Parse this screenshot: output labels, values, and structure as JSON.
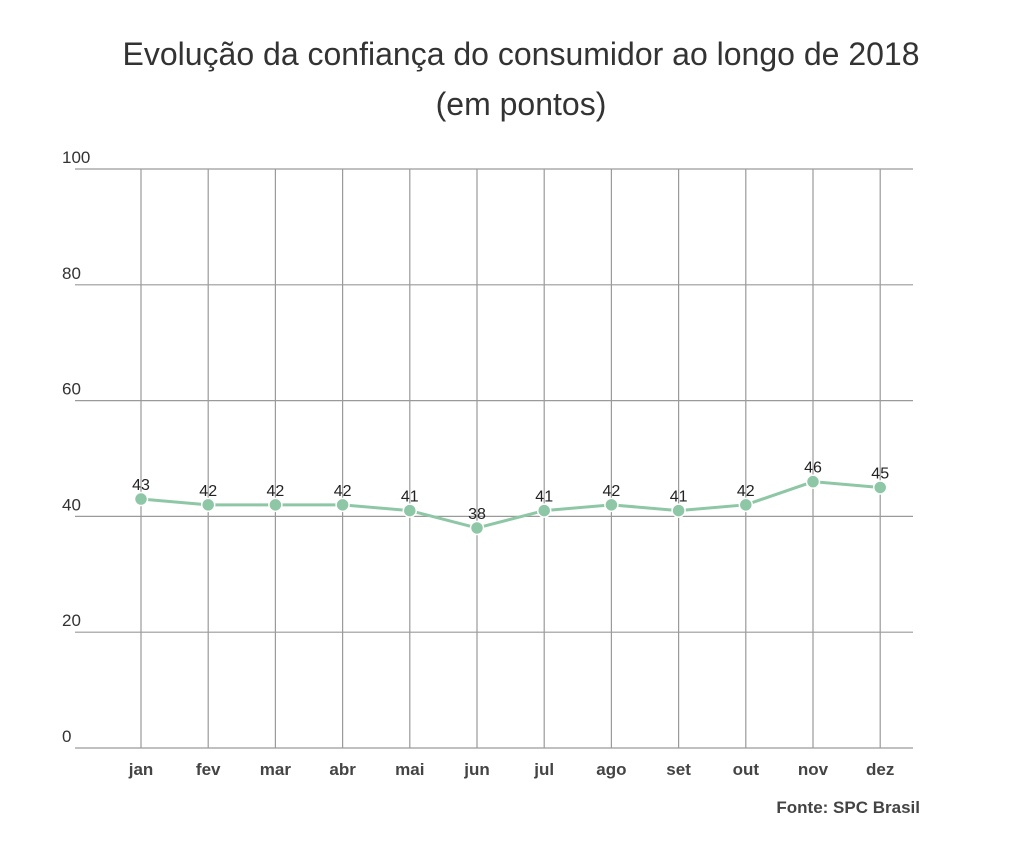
{
  "chart_data": {
    "type": "line",
    "title": "Evolução da confiança do consumidor ao longo de 2018",
    "subtitle": "(em pontos)",
    "categories": [
      "jan",
      "fev",
      "mar",
      "abr",
      "mai",
      "jun",
      "jul",
      "ago",
      "set",
      "out",
      "nov",
      "dez"
    ],
    "values": [
      43,
      42,
      42,
      42,
      41,
      38,
      41,
      42,
      41,
      42,
      46,
      45
    ],
    "color": "#8ec7a6",
    "ylim": [
      0,
      100
    ],
    "yticks": [
      0,
      20,
      40,
      60,
      80,
      100
    ],
    "grid": true,
    "source": "Fonte: SPC Brasil"
  }
}
